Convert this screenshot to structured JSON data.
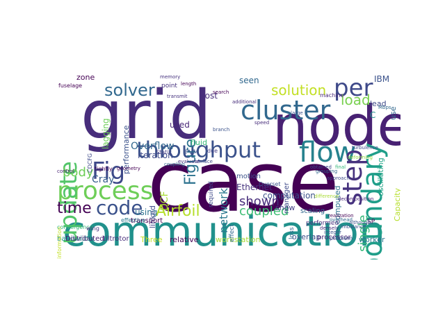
{
  "palette": {
    "purple": "#440154",
    "indigo": "#3b528b",
    "slate": "#31688e",
    "teal": "#21918c",
    "green": "#35b779",
    "lime": "#90d743",
    "yellow": "#c7e020"
  },
  "words": [
    {
      "text": "case",
      "color": "#440154",
      "weight": 1.0
    },
    {
      "text": "grid",
      "color": "#472d7b",
      "weight": 0.9
    },
    {
      "text": "communication",
      "color": "#21918c",
      "weight": 0.85
    },
    {
      "text": "node",
      "color": "#482173",
      "weight": 0.75
    },
    {
      "text": "throughput",
      "color": "#3b528b",
      "weight": 0.5
    },
    {
      "text": "process",
      "color": "#6ece58",
      "weight": 0.45
    },
    {
      "text": "cluster",
      "color": "#31688e",
      "weight": 0.45
    },
    {
      "text": "flow",
      "color": "#26828e",
      "weight": 0.45
    },
    {
      "text": "boundary",
      "color": "#1f9e89",
      "weight": 0.45
    },
    {
      "text": "step",
      "color": "#46327e",
      "weight": 0.4
    },
    {
      "text": "update",
      "color": "#52c569",
      "weight": 0.4
    },
    {
      "text": "Fig",
      "color": "#3e4989",
      "weight": 0.4
    },
    {
      "text": "code",
      "color": "#3b528b",
      "weight": 0.35
    },
    {
      "text": "per",
      "color": "#3e4989",
      "weight": 0.35
    },
    {
      "text": "solver",
      "color": "#31688e",
      "weight": 0.3
    },
    {
      "text": "Airfoil",
      "color": "#b5de2b",
      "weight": 0.3
    },
    {
      "text": "time",
      "color": "#440154",
      "weight": 0.25
    },
    {
      "text": "Figure",
      "color": "#2c728e",
      "weight": 0.25
    },
    {
      "text": "solution",
      "color": "#c2df23",
      "weight": 0.22
    },
    {
      "text": "load",
      "color": "#7ad151",
      "weight": 0.22
    },
    {
      "text": "single",
      "color": "#35b779",
      "weight": 0.2
    },
    {
      "text": "coupled",
      "color": "#3dbc74",
      "weight": 0.2
    },
    {
      "text": "network",
      "color": "#2a788e",
      "weight": 0.2
    },
    {
      "text": "body",
      "color": "#6ece58",
      "weight": 0.2
    },
    {
      "text": "shown",
      "color": "#472d7b",
      "weight": 0.18
    },
    {
      "text": "Overflow",
      "color": "#31688e",
      "weight": 0.15
    },
    {
      "text": "DCF",
      "color": "#a8db34",
      "weight": 0.15
    },
    {
      "text": "Cray",
      "color": "#365d8d",
      "weight": 0.14
    },
    {
      "text": "computation",
      "color": "#3b528b",
      "weight": 0.14
    },
    {
      "text": "iteration",
      "color": "#3e4989",
      "weight": 0.13
    },
    {
      "text": "Ethernet",
      "color": "#46327e",
      "weight": 0.13
    },
    {
      "text": "used",
      "color": "#482878",
      "weight": 0.13
    },
    {
      "text": "using",
      "color": "#2c728e",
      "weight": 0.13
    },
    {
      "text": "seen",
      "color": "#31688e",
      "weight": 0.12
    },
    {
      "text": "cost",
      "color": "#472d7b",
      "weight": 0.12
    },
    {
      "text": "lagging",
      "color": "#6ece58",
      "weight": 0.12
    },
    {
      "text": "performance",
      "color": "#3b528b",
      "weight": 0.12
    },
    {
      "text": "zone",
      "color": "#440154",
      "weight": 0.12
    },
    {
      "text": "C",
      "color": "#21918c",
      "weight": 0.12
    },
    {
      "text": "IBM",
      "color": "#3b528b",
      "weight": 0.12
    },
    {
      "text": "show",
      "color": "#433e85",
      "weight": 0.11
    },
    {
      "text": "computed",
      "color": "#2c728e",
      "weight": 0.11
    },
    {
      "text": "fluid",
      "color": "#35b779",
      "weight": 0.11
    },
    {
      "text": "linked",
      "color": "#3e4989",
      "weight": 0.11
    },
    {
      "text": "Capacity",
      "color": "#b5de2b",
      "weight": 0.11
    },
    {
      "text": "oscillating",
      "color": "#20a486",
      "weight": 0.11
    },
    {
      "text": "lead",
      "color": "#3e4989",
      "weight": 0.11
    },
    {
      "text": "use",
      "color": "#31688e",
      "weight": 0.11
    },
    {
      "text": "workstation",
      "color": "#a8db34",
      "weight": 0.11
    },
    {
      "text": "relative",
      "color": "#440154",
      "weight": 0.11
    },
    {
      "text": "Three",
      "color": "#c2df23",
      "weight": 0.1
    },
    {
      "text": "overlap",
      "color": "#3b528b",
      "weight": 0.1
    },
    {
      "text": "worker",
      "color": "#2a788e",
      "weight": 0.1
    },
    {
      "text": "processor",
      "color": "#482878",
      "weight": 0.1
    },
    {
      "text": "scaling",
      "color": "#31688e",
      "weight": 0.1
    },
    {
      "text": "manager",
      "color": "#3e4989",
      "weight": 0.1
    },
    {
      "text": "transport",
      "color": "#440154",
      "weight": 0.1
    },
    {
      "text": "motion",
      "color": "#3b528b",
      "weight": 0.1
    },
    {
      "text": "bandwidth",
      "color": "#21918c",
      "weight": 0.1
    },
    {
      "text": "tiltrotor",
      "color": "#472d7b",
      "weight": 0.09
    },
    {
      "text": "Distributed",
      "color": "#482173",
      "weight": 0.09
    },
    {
      "text": "effect",
      "color": "#31688e",
      "weight": 0.09
    },
    {
      "text": "PVM",
      "color": "#3b528b",
      "weight": 0.09
    },
    {
      "text": "fuselage",
      "color": "#440154",
      "weight": 0.09
    },
    {
      "text": "point",
      "color": "#46327e",
      "weight": 0.09
    },
    {
      "text": "Static",
      "color": "#433e85",
      "weight": 0.09
    },
    {
      "text": "required",
      "color": "#3e4989",
      "weight": 0.09
    },
    {
      "text": "performed",
      "color": "#472d7b",
      "weight": 0.09
    },
    {
      "text": "loss",
      "color": "#31688e",
      "weight": 0.09
    },
    {
      "text": "SP",
      "color": "#440154",
      "weight": 0.09
    },
    {
      "text": "problem",
      "color": "#3b528b",
      "weight": 0.08
    },
    {
      "text": "convergence",
      "color": "#35b779",
      "weight": 0.08
    },
    {
      "text": "wing",
      "color": "#46327e",
      "weight": 0.08
    },
    {
      "text": "tightly",
      "color": "#440154",
      "weight": 0.08
    },
    {
      "text": "CDCFG",
      "color": "#3e4989",
      "weight": 0.08
    },
    {
      "text": "information",
      "color": "#c2df23",
      "weight": 0.08
    },
    {
      "text": "Overset",
      "color": "#3b528b",
      "weight": 0.07
    },
    {
      "text": "due",
      "color": "#433e85",
      "weight": 0.07
    },
    {
      "text": "effective",
      "color": "#2a788e",
      "weight": 0.07
    },
    {
      "text": "machine",
      "color": "#482878",
      "weight": 0.07
    },
    {
      "text": "Mbps",
      "color": "#31688e",
      "weight": 0.07
    },
    {
      "text": "large",
      "color": "#3b528b",
      "weight": 0.07
    },
    {
      "text": "approach",
      "color": "#3e4989",
      "weight": 0.06
    },
    {
      "text": "search",
      "color": "#440154",
      "weight": 0.06
    },
    {
      "text": "additional",
      "color": "#472d7b",
      "weight": 0.06
    },
    {
      "text": "memory",
      "color": "#46327e",
      "weight": 0.06
    },
    {
      "text": "branch",
      "color": "#3b528b",
      "weight": 0.06
    },
    {
      "text": "overhead",
      "color": "#31688e",
      "weight": 0.06
    },
    {
      "text": "control",
      "color": "#482173",
      "weight": 0.06
    },
    {
      "text": "surface",
      "color": "#3e4989",
      "weight": 0.06
    },
    {
      "text": "geometry",
      "color": "#440154",
      "weight": 0.06
    },
    {
      "text": "speed",
      "color": "#472d7b",
      "weight": 0.06
    },
    {
      "text": "integer",
      "color": "#3b528b",
      "weight": 0.06
    },
    {
      "text": "evaluate",
      "color": "#46327e",
      "weight": 0.06
    },
    {
      "text": "coupling",
      "color": "#31688e",
      "weight": 0.06
    },
    {
      "text": "obtained",
      "color": "#3e4989",
      "weight": 0.06
    },
    {
      "text": "final",
      "color": "#35b779",
      "weight": 0.06
    },
    {
      "text": "length",
      "color": "#440154",
      "weight": 0.06
    },
    {
      "text": "decomposition",
      "color": "#482878",
      "weight": 0.06
    },
    {
      "text": "imbalance",
      "color": "#3b528b",
      "weight": 0.06
    },
    {
      "text": "deforming",
      "color": "#90d743",
      "weight": 0.06
    },
    {
      "text": "grouping",
      "color": "#31688e",
      "weight": 0.06
    },
    {
      "text": "turbulence",
      "color": "#3e4989",
      "weight": 0.06
    },
    {
      "text": "difference",
      "color": "#a8db34",
      "weight": 0.06
    },
    {
      "text": "realization",
      "color": "#440154",
      "weight": 0.06
    },
    {
      "text": "transmit",
      "color": "#46327e",
      "weight": 0.06
    },
    {
      "text": "although",
      "color": "#3b528b",
      "weight": 0.06
    },
    {
      "text": "densely",
      "color": "#472d7b",
      "weight": 0.06
    }
  ]
}
